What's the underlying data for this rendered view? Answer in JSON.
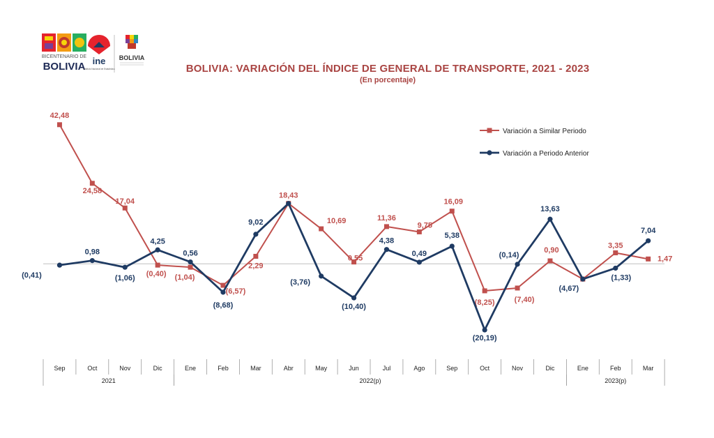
{
  "logos": {
    "bicentenario_label": "BICENTENARIO DE",
    "bicentenario_name": "BOLIVIA",
    "ine_label": "ine",
    "ine_caption": "Instituto Nacional de Estadística",
    "estado_name": "BOLIVIA"
  },
  "colors": {
    "similar": "#c0504d",
    "anterior": "#1f3b63",
    "axis": "#bfbfbf"
  },
  "chart_data": {
    "type": "line",
    "title": "BOLIVIA: VARIACIÓN DEL ÍNDICE DE GENERAL DE TRANSPORTE,  2021 - 2023",
    "subtitle": "(En porcentaje)",
    "categories": [
      "Sep",
      "Oct",
      "Nov",
      "Dic",
      "Ene",
      "Feb",
      "Mar",
      "Abr",
      "May",
      "Jun",
      "Jul",
      "Ago",
      "Sep",
      "Oct",
      "Nov",
      "Dic",
      "Ene",
      "Feb",
      "Mar"
    ],
    "year_groups": [
      {
        "label": "2021",
        "start": 0,
        "end": 3
      },
      {
        "label": "2022(p)",
        "start": 4,
        "end": 15
      },
      {
        "label": "2023(p)",
        "start": 16,
        "end": 18
      }
    ],
    "ylim": [
      -27,
      55
    ],
    "grid": false,
    "legend_position": "top-right",
    "series": [
      {
        "name": "Variación a Similar Periodo",
        "marker": "square",
        "values": [
          42.48,
          24.58,
          17.04,
          -0.4,
          -1.04,
          -6.57,
          2.29,
          18.43,
          10.69,
          0.55,
          11.36,
          9.75,
          16.09,
          -8.25,
          -7.4,
          0.9,
          -4.67,
          3.35,
          1.47
        ],
        "labels": [
          "42,48",
          "24,58",
          "17,04",
          "(0,40)",
          "(1,04)",
          "(6,57)",
          "2,29",
          "18,43",
          "10,69",
          "0,55",
          "11,36",
          "9,75",
          "16,09",
          "(8,25)",
          "(7,40)",
          "0,90",
          "",
          "3,35",
          "1,47"
        ]
      },
      {
        "name": "Variación a Periodo Anterior",
        "marker": "circle",
        "values": [
          -0.41,
          0.98,
          -1.06,
          4.25,
          0.56,
          -8.68,
          9.02,
          18.43,
          -3.76,
          -10.4,
          4.38,
          0.49,
          5.38,
          -20.19,
          -0.14,
          13.63,
          -4.67,
          -1.33,
          7.04
        ],
        "labels": [
          "(0,41)",
          "0,98",
          "(1,06)",
          "4,25",
          "0,56",
          "(8,68)",
          "9,02",
          "",
          "(3,76)",
          "(10,40)",
          "4,38",
          "0,49",
          "5,38",
          "(20,19)",
          "(0,14)",
          "13,63",
          "(4,67)",
          "(1,33)",
          "7,04"
        ]
      }
    ]
  }
}
